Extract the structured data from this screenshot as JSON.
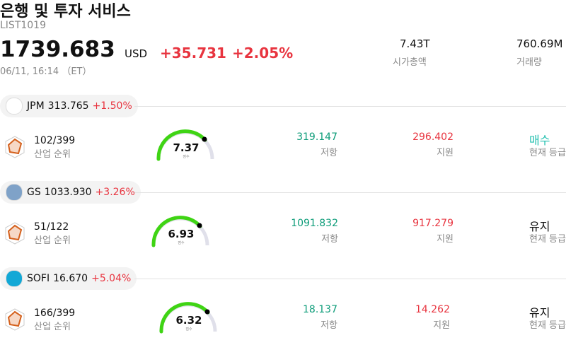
{
  "header": {
    "title": "은행 및 투자 서비스",
    "code": "LIST1019",
    "price": "1739.683",
    "currency": "USD",
    "change": "+35.731",
    "change_pct": "+2.05%",
    "timestamp": "06/11, 16:14 （ET）",
    "market_cap": "7.43T",
    "market_cap_label": "시가총액",
    "volume": "760.69M",
    "volume_label": "거래량"
  },
  "stocks": [
    {
      "ticker": "JPM",
      "price": "313.765",
      "change_pct": "+1.50%",
      "logo_color": "#ffffff",
      "rank": "102/399",
      "rank_label": "산업 순위",
      "score": "7.37",
      "score_label": "점수",
      "resistance": "319.147",
      "resistance_label": "저항",
      "support": "296.402",
      "support_label": "지원",
      "rating": "매수",
      "rating_color": "#1fbfae",
      "rating_label": "현재 등급"
    },
    {
      "ticker": "GS",
      "price": "1033.930",
      "change_pct": "+3.26%",
      "logo_color": "#7fa2c8",
      "rank": "51/122",
      "rank_label": "산업 순위",
      "score": "6.93",
      "score_label": "점수",
      "resistance": "1091.832",
      "resistance_label": "저항",
      "support": "917.279",
      "support_label": "지원",
      "rating": "유지",
      "rating_color": "#111111",
      "rating_label": "현재 등급"
    },
    {
      "ticker": "SOFI",
      "price": "16.670",
      "change_pct": "+5.04%",
      "logo_color": "#12a8d6",
      "rank": "166/399",
      "rank_label": "산업 순위",
      "score": "6.32",
      "score_label": "점수",
      "resistance": "18.137",
      "resistance_label": "저항",
      "support": "14.262",
      "support_label": "지원",
      "rating": "유지",
      "rating_color": "#111111",
      "rating_label": "현재 등급"
    }
  ]
}
